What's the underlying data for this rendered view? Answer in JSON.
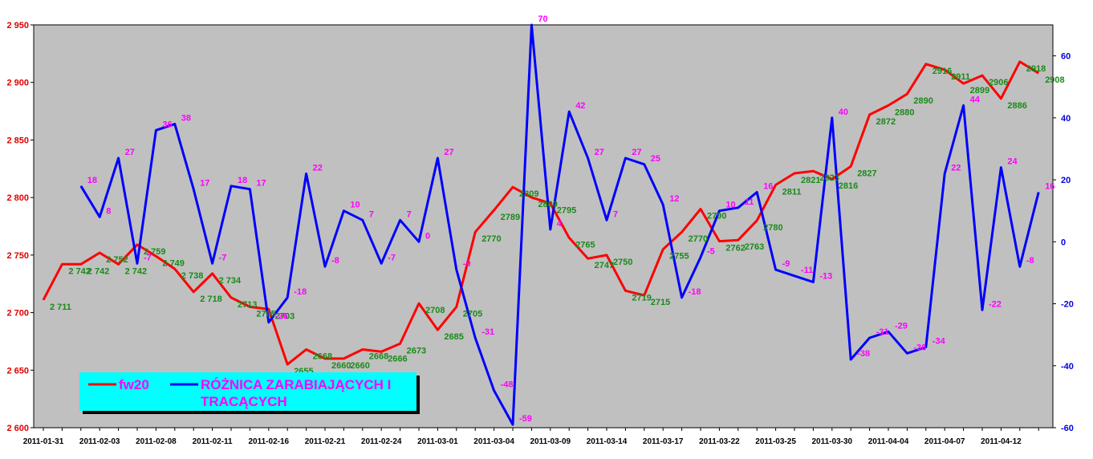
{
  "chart_data": {
    "type": "line",
    "colors": {
      "plot_bg": "#c0c0c0",
      "fw20": "#ff0000",
      "diff": "#0000ff",
      "fw_label": "#1a8a1a",
      "diff_label": "#ff00ff",
      "legend_bg": "#00ffff",
      "left_axis": "#e00000",
      "right_axis": "#0000e0"
    },
    "x_tick_labels": [
      "2011-01-31",
      "2011-02-03",
      "2011-02-08",
      "2011-02-11",
      "2011-02-16",
      "2011-02-21",
      "2011-02-24",
      "2011-03-01",
      "2011-03-04",
      "2011-03-09",
      "2011-03-14",
      "2011-03-17",
      "2011-03-22",
      "2011-03-25",
      "2011-03-30",
      "2011-04-04",
      "2011-04-07",
      "2011-04-12"
    ],
    "left_axis": {
      "ylim": [
        2600,
        2950
      ],
      "ticks": [
        2600,
        2650,
        2700,
        2750,
        2800,
        2850,
        2900,
        2950
      ],
      "tick_labels": [
        "2 600",
        "2 650",
        "2 700",
        "2 750",
        "2 800",
        "2 850",
        "2 900",
        "2 950"
      ]
    },
    "right_axis": {
      "ylim": [
        -60,
        70
      ],
      "ticks": [
        -60,
        -40,
        -20,
        0,
        20,
        40,
        60
      ],
      "tick_labels": [
        "-60",
        "-40",
        "-20",
        "0",
        "20",
        "40",
        "60"
      ]
    },
    "series": [
      {
        "name": "fw20",
        "axis": "left",
        "values": [
          2711,
          2742,
          2742,
          2752,
          2742,
          2759,
          2749,
          2738,
          2718,
          2734,
          2713,
          2705,
          2703,
          2655,
          2668,
          2660,
          2660,
          2668,
          2666,
          2673,
          2708,
          2685,
          2705,
          2770,
          2789,
          2809,
          2800,
          2795,
          2765,
          2747,
          2750,
          2719,
          2715,
          2755,
          2770,
          2790,
          2762,
          2763,
          2780,
          2811,
          2821,
          2823,
          2816,
          2827,
          2872,
          2880,
          2890,
          2916,
          2911,
          2899,
          2906,
          2886,
          2918,
          2908
        ],
        "labels": [
          "2 711",
          "2 742",
          "2 742",
          "2 752",
          "2 742",
          "2 759",
          "2 749",
          "2 738",
          "2 718",
          "2 734",
          "2713",
          "2705",
          "2703",
          "2655",
          "2668",
          "2660",
          "2660",
          "2668",
          "2666",
          "2673",
          "2708",
          "2685",
          "2705",
          "2770",
          "2789",
          "2809",
          "2800",
          "2795",
          "2765",
          "2747",
          "2750",
          "2719",
          "2715",
          "2755",
          "2770",
          "2790",
          "2762",
          "2763",
          "2780",
          "2811",
          "2821",
          "2823",
          "2816",
          "2827",
          "2872",
          "2880",
          "2890",
          "2916",
          "2911",
          "2899",
          "2906",
          "2886",
          "2918",
          "2908"
        ]
      },
      {
        "name": "RÓŻNICA ZARABIAJĄCYCH I TRACĄCYCH",
        "axis": "right",
        "values": [
          null,
          null,
          18,
          8,
          27,
          -7,
          36,
          38,
          17,
          -7,
          18,
          17,
          -26,
          -18,
          22,
          -8,
          10,
          7,
          -7,
          7,
          0,
          27,
          -9,
          -31,
          -48,
          -59,
          70,
          4,
          42,
          27,
          7,
          27,
          25,
          12,
          -18,
          -5,
          10,
          11,
          16,
          -9,
          -11,
          -13,
          40,
          -38,
          -31,
          -29,
          -36,
          -34,
          22,
          44,
          -22,
          24,
          -8,
          16
        ],
        "labels": [
          null,
          null,
          "18",
          "8",
          "27",
          "-7",
          "36",
          "38",
          "17",
          "-7",
          "18",
          "17",
          "-26",
          "-18",
          "22",
          "-8",
          "10",
          "7",
          "-7",
          "7",
          "0",
          "27",
          "-9",
          "-31",
          "-48",
          "-59",
          "70",
          "4",
          "42",
          "27",
          "7",
          "27",
          "25",
          "12",
          "-18",
          "-5",
          "10",
          "11",
          "16",
          "-9",
          "-11",
          "-13",
          "40",
          "-38",
          "-31",
          "-29",
          "-36",
          "-34",
          "22",
          "44",
          "-22",
          "24",
          "-8",
          "16"
        ]
      }
    ],
    "legend": {
      "items": [
        "fw20",
        "RÓŻNICA ZARABIAJĄCYCH I TRACĄCYCH"
      ],
      "display_lines": [
        "RÓŻNICA ZARABIAJĄCYCH I",
        "TRACĄCYCH"
      ]
    }
  }
}
